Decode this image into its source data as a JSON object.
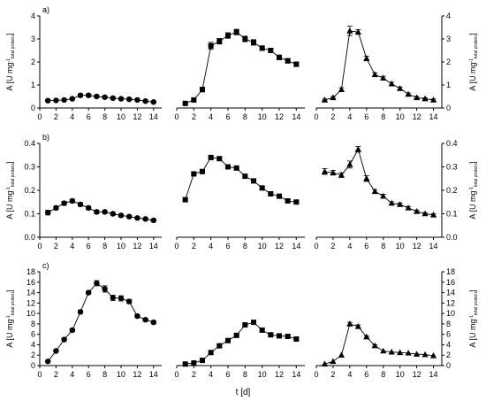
{
  "figure": {
    "ylabel_main": "A [U mg",
    "ylabel_sup": "-1",
    "ylabel_sub": "total protein",
    "ylabel_close": "]",
    "xlabel": "t [d]"
  },
  "chart_data": [
    {
      "type": "line",
      "panel": "a",
      "row_label": "a)",
      "position": "left",
      "marker": "circle",
      "x": [
        1,
        2,
        3,
        4,
        5,
        6,
        7,
        8,
        9,
        10,
        11,
        12,
        13,
        14
      ],
      "values": [
        0.32,
        0.33,
        0.35,
        0.4,
        0.55,
        0.55,
        0.5,
        0.47,
        0.43,
        0.4,
        0.38,
        0.35,
        0.3,
        0.26
      ],
      "errors": [
        0.04,
        0.04,
        0.04,
        0.05,
        0.06,
        0.06,
        0.05,
        0.05,
        0.05,
        0.05,
        0.05,
        0.05,
        0.04,
        0.04
      ],
      "ylim": [
        0,
        4
      ],
      "yticks": [
        0,
        1,
        2,
        3,
        4
      ],
      "xlim": [
        0,
        15
      ],
      "xticks": [
        0,
        2,
        4,
        6,
        8,
        10,
        12,
        14
      ]
    },
    {
      "type": "line",
      "panel": "a",
      "position": "middle",
      "marker": "square",
      "x": [
        1,
        2,
        3,
        4,
        5,
        6,
        7,
        8,
        9,
        10,
        11,
        12,
        13,
        14
      ],
      "values": [
        0.2,
        0.35,
        0.8,
        2.7,
        2.9,
        3.15,
        3.3,
        3.0,
        2.85,
        2.6,
        2.5,
        2.2,
        2.05,
        1.9
      ],
      "errors": [
        0.05,
        0.06,
        0.1,
        0.15,
        0.12,
        0.12,
        0.12,
        0.12,
        0.12,
        0.1,
        0.1,
        0.1,
        0.1,
        0.1
      ],
      "ylim": [
        0,
        4
      ],
      "yticks": [
        0,
        1,
        2,
        3,
        4
      ],
      "xlim": [
        0,
        15
      ],
      "xticks": [
        0,
        2,
        4,
        6,
        8,
        10,
        12,
        14
      ]
    },
    {
      "type": "line",
      "panel": "a",
      "position": "right",
      "marker": "triangle",
      "x": [
        1,
        2,
        3,
        4,
        5,
        6,
        7,
        8,
        9,
        10,
        11,
        12,
        13,
        14
      ],
      "values": [
        0.35,
        0.45,
        0.8,
        3.35,
        3.3,
        2.15,
        1.45,
        1.3,
        1.05,
        0.85,
        0.6,
        0.45,
        0.4,
        0.35
      ],
      "errors": [
        0.04,
        0.05,
        0.08,
        0.2,
        0.1,
        0.1,
        0.08,
        0.08,
        0.07,
        0.06,
        0.05,
        0.05,
        0.04,
        0.04
      ],
      "ylim": [
        0,
        4
      ],
      "yticks": [
        0,
        1,
        2,
        3,
        4
      ],
      "xlim": [
        0,
        15
      ],
      "xticks": [
        0,
        2,
        4,
        6,
        8,
        10,
        12,
        14
      ]
    },
    {
      "type": "line",
      "panel": "b",
      "row_label": "b)",
      "position": "left",
      "marker": "circle",
      "x": [
        1,
        2,
        3,
        4,
        5,
        6,
        7,
        8,
        9,
        10,
        11,
        12,
        13,
        14
      ],
      "values": [
        0.105,
        0.125,
        0.145,
        0.155,
        0.14,
        0.125,
        0.108,
        0.108,
        0.1,
        0.093,
        0.088,
        0.082,
        0.078,
        0.072
      ],
      "errors": [
        0.01,
        0.008,
        0.008,
        0.008,
        0.008,
        0.008,
        0.008,
        0.006,
        0.006,
        0.006,
        0.005,
        0.005,
        0.005,
        0.005
      ],
      "ylim": [
        0,
        0.4
      ],
      "yticks": [
        0.0,
        0.1,
        0.2,
        0.3,
        0.4
      ],
      "xlim": [
        0,
        15
      ],
      "xticks": [
        0,
        2,
        4,
        6,
        8,
        10,
        12,
        14
      ]
    },
    {
      "type": "line",
      "panel": "b",
      "position": "middle",
      "marker": "square",
      "x": [
        1,
        2,
        3,
        4,
        5,
        6,
        7,
        8,
        9,
        10,
        11,
        12,
        13,
        14
      ],
      "values": [
        0.16,
        0.27,
        0.28,
        0.34,
        0.335,
        0.3,
        0.295,
        0.26,
        0.24,
        0.21,
        0.185,
        0.175,
        0.155,
        0.15
      ],
      "errors": [
        0.008,
        0.008,
        0.008,
        0.006,
        0.006,
        0.006,
        0.006,
        0.006,
        0.006,
        0.006,
        0.006,
        0.006,
        0.006,
        0.006
      ],
      "ylim": [
        0,
        0.4
      ],
      "yticks": [
        0.0,
        0.1,
        0.2,
        0.3,
        0.4
      ],
      "xlim": [
        0,
        15
      ],
      "xticks": [
        0,
        2,
        4,
        6,
        8,
        10,
        12,
        14
      ]
    },
    {
      "type": "line",
      "panel": "b",
      "position": "right",
      "marker": "triangle",
      "x": [
        1,
        2,
        3,
        4,
        5,
        6,
        7,
        8,
        9,
        10,
        11,
        12,
        13,
        14
      ],
      "values": [
        0.28,
        0.275,
        0.265,
        0.31,
        0.375,
        0.25,
        0.195,
        0.175,
        0.145,
        0.14,
        0.125,
        0.11,
        0.1,
        0.095
      ],
      "errors": [
        0.012,
        0.01,
        0.01,
        0.015,
        0.012,
        0.012,
        0.008,
        0.008,
        0.006,
        0.006,
        0.006,
        0.006,
        0.005,
        0.005
      ],
      "ylim": [
        0,
        0.4
      ],
      "yticks": [
        0.0,
        0.1,
        0.2,
        0.3,
        0.4
      ],
      "xlim": [
        0,
        15
      ],
      "xticks": [
        0,
        2,
        4,
        6,
        8,
        10,
        12,
        14
      ]
    },
    {
      "type": "line",
      "panel": "c",
      "row_label": "c)",
      "position": "left",
      "marker": "circle",
      "x": [
        1,
        2,
        3,
        4,
        5,
        6,
        7,
        8,
        9,
        10,
        11,
        12,
        13,
        14
      ],
      "values": [
        0.8,
        2.8,
        5.0,
        6.8,
        10.3,
        14.0,
        15.8,
        14.7,
        13.0,
        12.9,
        12.3,
        9.5,
        8.8,
        8.3
      ],
      "errors": [
        0.15,
        0.2,
        0.3,
        0.3,
        0.3,
        0.3,
        0.5,
        0.6,
        0.5,
        0.5,
        0.4,
        0.3,
        0.3,
        0.3
      ],
      "ylim": [
        0,
        18
      ],
      "yticks": [
        0,
        2,
        4,
        6,
        8,
        10,
        12,
        14,
        16,
        18
      ],
      "xlim": [
        0,
        15
      ],
      "xticks": [
        0,
        2,
        4,
        6,
        8,
        10,
        12,
        14
      ]
    },
    {
      "type": "line",
      "panel": "c",
      "position": "middle",
      "marker": "square",
      "x": [
        1,
        2,
        3,
        4,
        5,
        6,
        7,
        8,
        9,
        10,
        11,
        12,
        13,
        14
      ],
      "values": [
        0.3,
        0.5,
        1.0,
        2.5,
        3.8,
        4.8,
        5.8,
        7.8,
        8.3,
        6.8,
        5.9,
        5.7,
        5.6,
        5.1
      ],
      "errors": [
        0.05,
        0.05,
        0.1,
        0.15,
        0.2,
        0.2,
        0.2,
        0.3,
        0.3,
        0.2,
        0.2,
        0.2,
        0.2,
        0.2
      ],
      "ylim": [
        0,
        18
      ],
      "yticks": [
        0,
        2,
        4,
        6,
        8,
        10,
        12,
        14,
        16,
        18
      ],
      "xlim": [
        0,
        15
      ],
      "xticks": [
        0,
        2,
        4,
        6,
        8,
        10,
        12,
        14
      ]
    },
    {
      "type": "line",
      "panel": "c",
      "position": "right",
      "marker": "triangle",
      "x": [
        1,
        2,
        3,
        4,
        5,
        6,
        7,
        8,
        9,
        10,
        11,
        12,
        13,
        14
      ],
      "values": [
        0.3,
        0.8,
        2.0,
        8.0,
        7.5,
        5.5,
        3.8,
        2.8,
        2.6,
        2.5,
        2.4,
        2.2,
        2.1,
        1.9
      ],
      "errors": [
        0.05,
        0.1,
        0.15,
        0.3,
        0.3,
        0.2,
        0.2,
        0.15,
        0.1,
        0.1,
        0.1,
        0.1,
        0.1,
        0.1
      ],
      "ylim": [
        0,
        18
      ],
      "yticks": [
        0,
        2,
        4,
        6,
        8,
        10,
        12,
        14,
        16,
        18
      ],
      "xlim": [
        0,
        15
      ],
      "xticks": [
        0,
        2,
        4,
        6,
        8,
        10,
        12,
        14
      ]
    }
  ]
}
